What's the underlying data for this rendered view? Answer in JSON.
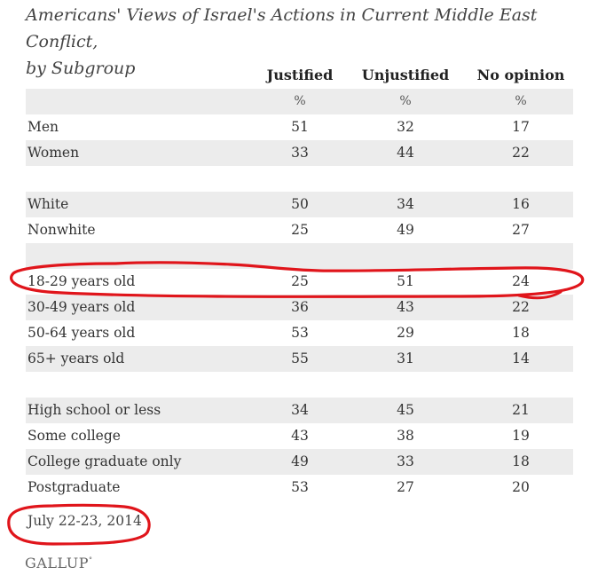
{
  "chart_data": {
    "type": "table",
    "title": "Americans' Views of Israel's Actions in Current Middle East Conflict,",
    "subtitle": "by Subgroup",
    "columns": [
      "Justified",
      "Unjustified",
      "No opinion"
    ],
    "units": [
      "%",
      "%",
      "%"
    ],
    "groups": [
      {
        "rows": [
          {
            "label": "Men",
            "values": [
              "51",
              "32",
              "17"
            ]
          },
          {
            "label": "Women",
            "values": [
              "33",
              "44",
              "22"
            ]
          }
        ]
      },
      {
        "rows": [
          {
            "label": "White",
            "values": [
              "50",
              "34",
              "16"
            ]
          },
          {
            "label": "Nonwhite",
            "values": [
              "25",
              "49",
              "27"
            ]
          }
        ]
      },
      {
        "rows": [
          {
            "label": "18-29 years old",
            "values": [
              "25",
              "51",
              "24"
            ],
            "highlighted": true
          },
          {
            "label": "30-49 years old",
            "values": [
              "36",
              "43",
              "22"
            ]
          },
          {
            "label": "50-64 years old",
            "values": [
              "53",
              "29",
              "18"
            ]
          },
          {
            "label": "65+ years old",
            "values": [
              "55",
              "31",
              "14"
            ]
          }
        ]
      },
      {
        "rows": [
          {
            "label": "High school or less",
            "values": [
              "34",
              "45",
              "21"
            ]
          },
          {
            "label": "Some college",
            "values": [
              "43",
              "38",
              "19"
            ]
          },
          {
            "label": "College graduate only",
            "values": [
              "49",
              "33",
              "18"
            ]
          },
          {
            "label": "Postgraduate",
            "values": [
              "53",
              "27",
              "20"
            ]
          }
        ]
      }
    ],
    "date": "July 22-23, 2014",
    "annotation_color": "#e0151b",
    "shade_color": "#ececec"
  },
  "brand": {
    "name": "GALLUP",
    "mark": "°"
  }
}
